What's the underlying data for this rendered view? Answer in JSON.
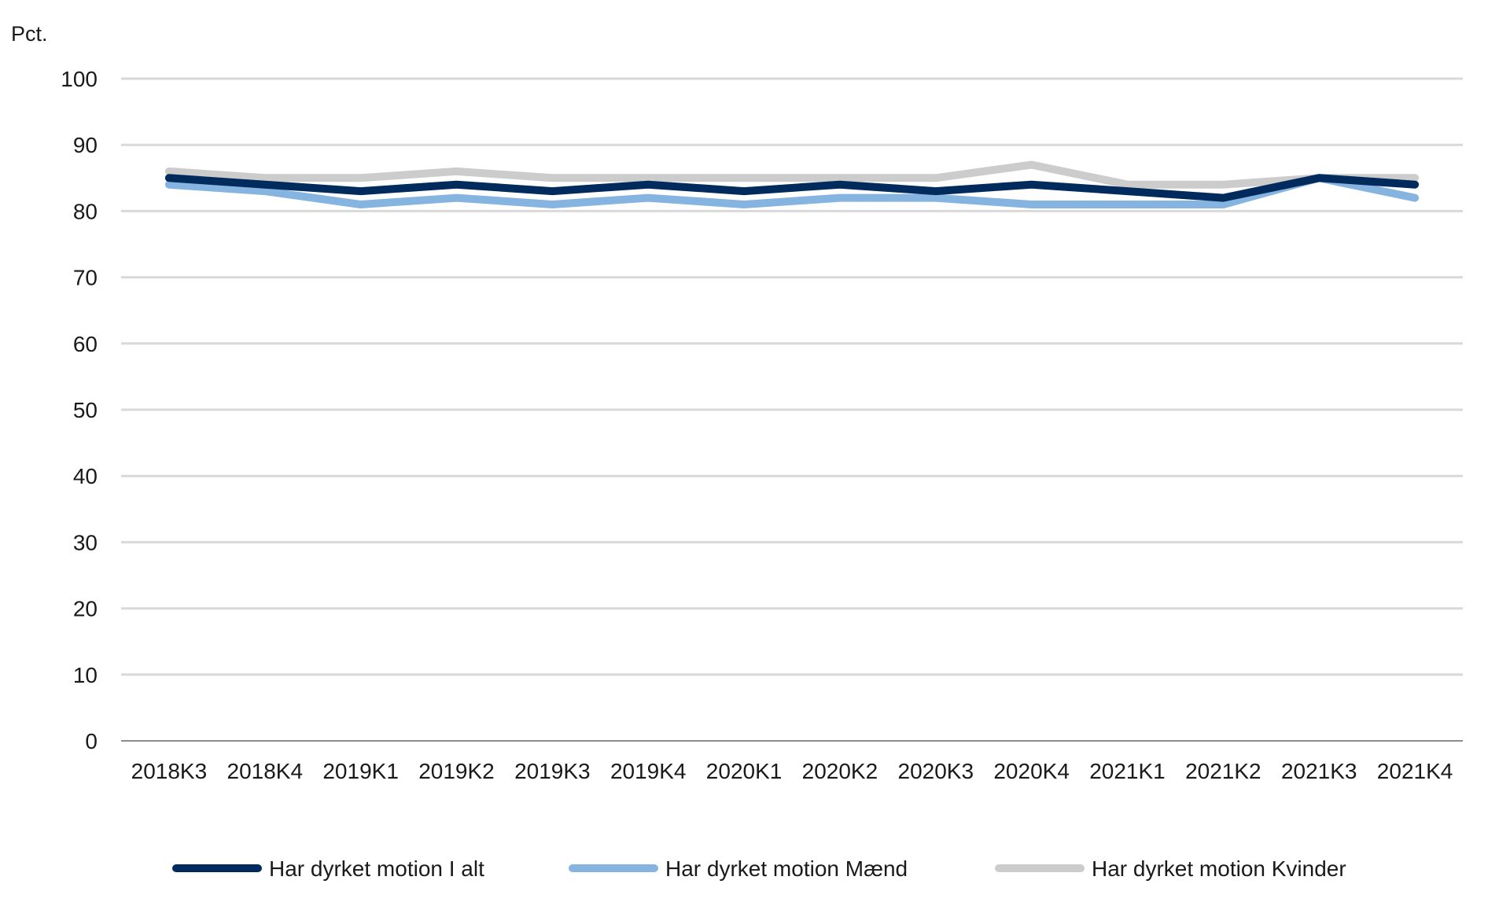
{
  "chart_data": {
    "type": "line",
    "ylabel": "Pct.",
    "ylim": [
      0,
      100
    ],
    "yticks": [
      0,
      10,
      20,
      30,
      40,
      50,
      60,
      70,
      80,
      90,
      100
    ],
    "grid": true,
    "legend_position": "bottom",
    "categories": [
      "2018K3",
      "2018K4",
      "2019K1",
      "2019K2",
      "2019K3",
      "2019K4",
      "2020K1",
      "2020K2",
      "2020K3",
      "2020K4",
      "2021K1",
      "2021K2",
      "2021K3",
      "2021K4"
    ],
    "series": [
      {
        "name": "Har dyrket motion I alt",
        "color": "#002b5c",
        "values": [
          85,
          84,
          83,
          84,
          83,
          84,
          83,
          84,
          83,
          84,
          83,
          82,
          85,
          84
        ]
      },
      {
        "name": "Har dyrket motion Mænd",
        "color": "#86b4e0",
        "values": [
          84,
          83,
          81,
          82,
          81,
          82,
          81,
          82,
          82,
          81,
          81,
          81,
          85,
          82
        ]
      },
      {
        "name": "Har dyrket motion Kvinder",
        "color": "#cccccc",
        "values": [
          86,
          85,
          85,
          86,
          85,
          85,
          85,
          85,
          85,
          87,
          84,
          84,
          85,
          85
        ]
      }
    ],
    "colors": {
      "grid": "#d9d9d9",
      "axis": "#8c8c8c"
    }
  }
}
